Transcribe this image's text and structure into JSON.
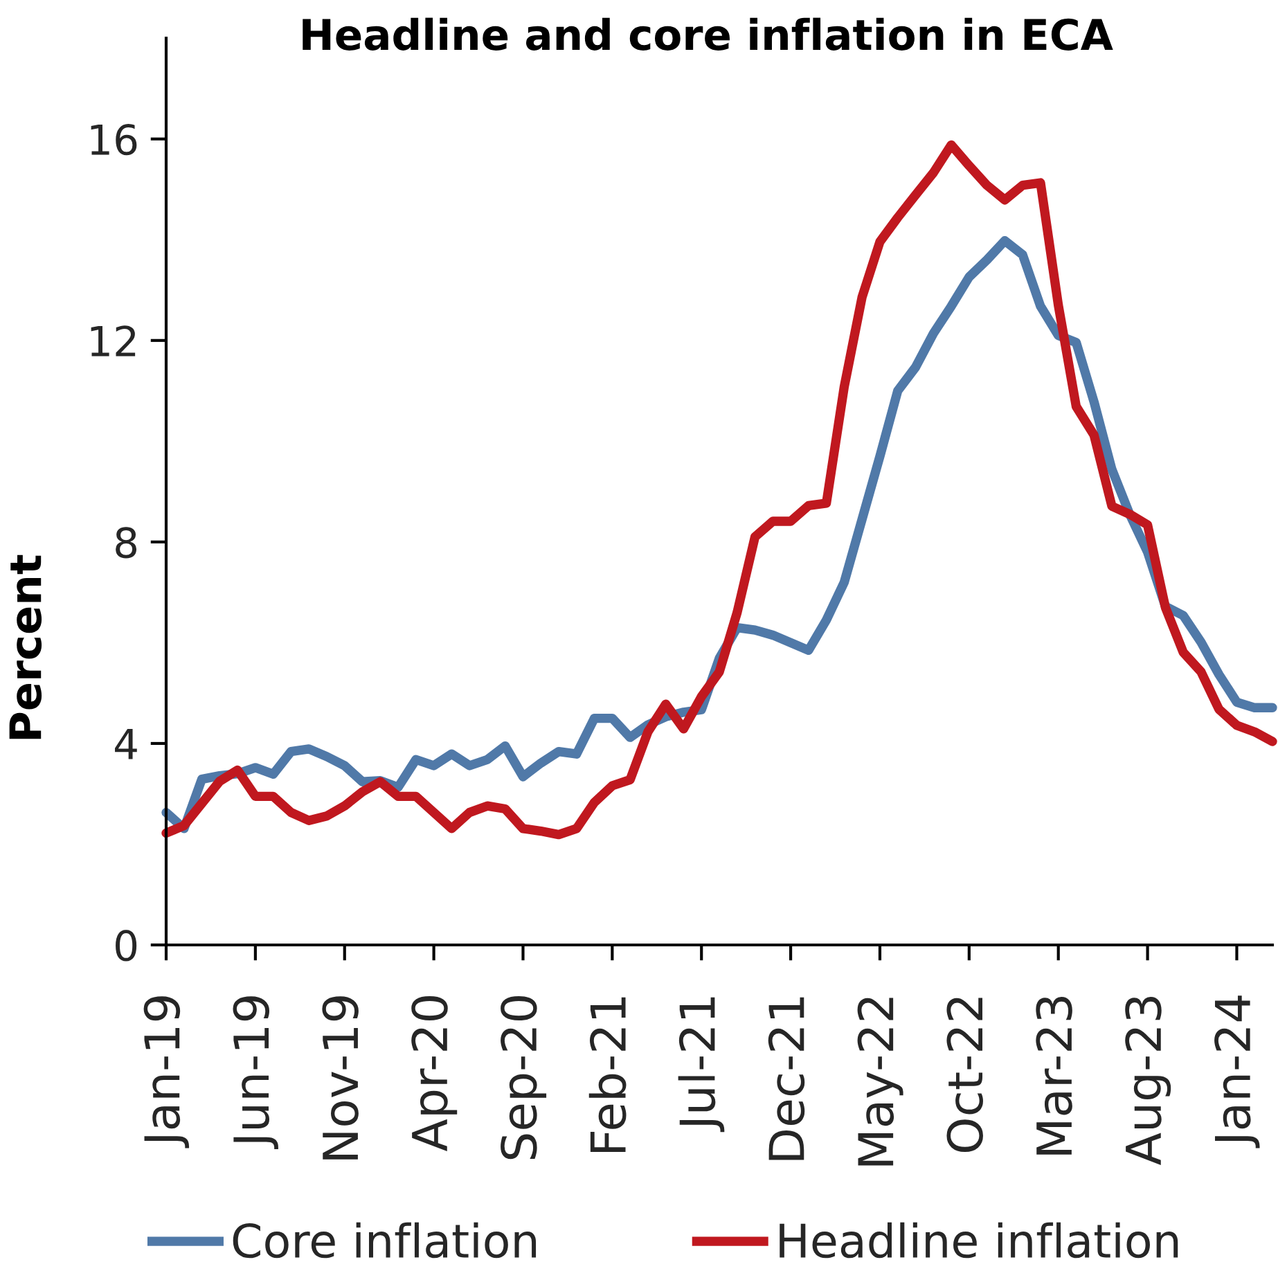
{
  "chart_data": {
    "type": "line",
    "title": "Headline and core inflation in ECA",
    "ylabel": "Percent",
    "categories": [
      "Jan-19",
      null,
      null,
      null,
      null,
      "Jun-19",
      null,
      null,
      null,
      null,
      "Nov-19",
      null,
      null,
      null,
      null,
      "Apr-20",
      null,
      null,
      null,
      null,
      "Sep-20",
      null,
      null,
      null,
      null,
      "Feb-21",
      null,
      null,
      null,
      null,
      "Jul-21",
      null,
      null,
      null,
      null,
      "Dec-21",
      null,
      null,
      null,
      null,
      "May-22",
      null,
      null,
      null,
      null,
      "Oct-22",
      null,
      null,
      null,
      null,
      "Mar-23",
      null,
      null,
      null,
      null,
      "Aug-23",
      null,
      null,
      null,
      null,
      "Jan-24",
      null,
      null
    ],
    "series": [
      {
        "name": "Core inflation",
        "color": "#5079a8",
        "values": [
          2.63,
          2.31,
          3.29,
          3.36,
          3.4,
          3.52,
          3.39,
          3.84,
          3.89,
          3.74,
          3.56,
          3.24,
          3.26,
          3.13,
          3.68,
          3.56,
          3.79,
          3.56,
          3.68,
          3.95,
          3.34,
          3.61,
          3.84,
          3.79,
          4.5,
          4.5,
          4.12,
          4.37,
          4.53,
          4.62,
          4.67,
          5.69,
          6.3,
          6.25,
          6.15,
          6.0,
          5.85,
          6.45,
          7.2,
          8.45,
          9.7,
          11.0,
          11.47,
          12.14,
          12.68,
          13.26,
          13.6,
          13.98,
          13.7,
          12.68,
          12.1,
          11.96,
          10.78,
          9.44,
          8.55,
          7.8,
          6.72,
          6.54,
          6.01,
          5.37,
          4.82,
          4.71,
          4.71
        ]
      },
      {
        "name": "Headline inflation",
        "color": "#c0181f",
        "values": [
          2.22,
          2.37,
          2.81,
          3.25,
          3.47,
          2.95,
          2.95,
          2.63,
          2.47,
          2.56,
          2.76,
          3.04,
          3.24,
          2.95,
          2.95,
          2.63,
          2.31,
          2.63,
          2.76,
          2.7,
          2.31,
          2.26,
          2.19,
          2.31,
          2.83,
          3.16,
          3.28,
          4.23,
          4.78,
          4.29,
          4.93,
          5.42,
          6.6,
          8.1,
          8.41,
          8.41,
          8.72,
          8.77,
          11.08,
          12.86,
          13.96,
          14.44,
          14.89,
          15.33,
          15.88,
          15.47,
          15.08,
          14.79,
          15.08,
          15.13,
          12.7,
          10.69,
          10.12,
          8.71,
          8.55,
          8.34,
          6.7,
          5.81,
          5.42,
          4.68,
          4.36,
          4.23,
          4.04
        ]
      }
    ],
    "ylim": [
      0,
      18
    ],
    "yticks": [
      0,
      4,
      8,
      12,
      16
    ],
    "legend": "bottom"
  }
}
